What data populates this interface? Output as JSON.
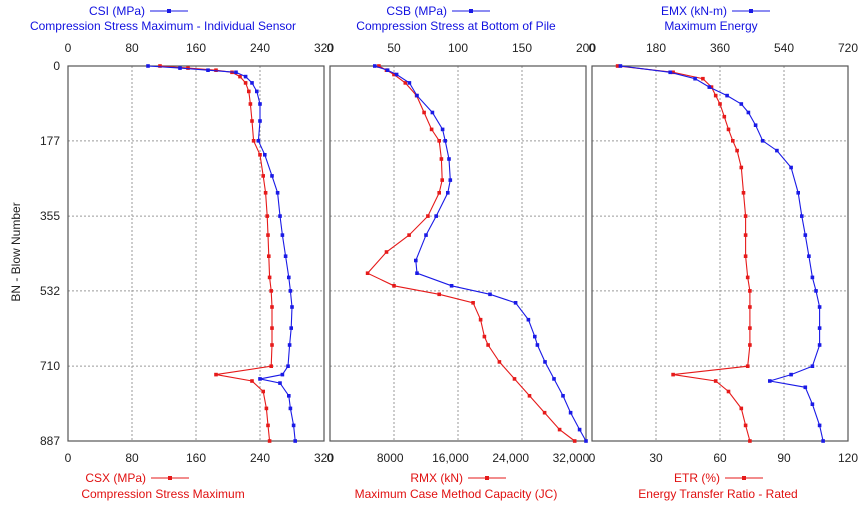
{
  "colors": {
    "blue": "#1a1ae6",
    "red": "#e61a1a",
    "grid": "#9a9a9a",
    "frame": "#555555"
  },
  "y_axis": {
    "label": "BN - Blow Number",
    "ticks": [
      0,
      177,
      355,
      532,
      710,
      887
    ],
    "range": [
      0,
      887
    ]
  },
  "chart_data": [
    {
      "type": "line",
      "top_series": {
        "name": "CSI (MPa)",
        "description": "Compression Stress Maximum - Individual Sensor",
        "color": "blue",
        "ticks": [
          0,
          80,
          160,
          240,
          320
        ],
        "range": [
          0,
          320
        ],
        "points": [
          [
            0,
            100
          ],
          [
            5,
            140
          ],
          [
            10,
            175
          ],
          [
            15,
            210
          ],
          [
            25,
            222
          ],
          [
            40,
            230
          ],
          [
            60,
            236
          ],
          [
            90,
            240
          ],
          [
            130,
            240
          ],
          [
            177,
            238
          ],
          [
            210,
            246
          ],
          [
            260,
            255
          ],
          [
            300,
            262
          ],
          [
            355,
            265
          ],
          [
            400,
            268
          ],
          [
            450,
            272
          ],
          [
            500,
            276
          ],
          [
            532,
            278
          ],
          [
            570,
            280
          ],
          [
            620,
            279
          ],
          [
            660,
            277
          ],
          [
            710,
            275
          ],
          [
            730,
            268
          ],
          [
            740,
            240
          ],
          [
            750,
            265
          ],
          [
            780,
            276
          ],
          [
            810,
            278
          ],
          [
            850,
            282
          ],
          [
            887,
            284
          ]
        ]
      },
      "bottom_series": {
        "name": "CSX (MPa)",
        "description": "Compression Stress Maximum",
        "color": "red",
        "ticks": [
          0,
          80,
          160,
          240,
          320
        ],
        "range": [
          0,
          320
        ],
        "points": [
          [
            0,
            115
          ],
          [
            5,
            150
          ],
          [
            10,
            185
          ],
          [
            15,
            205
          ],
          [
            25,
            215
          ],
          [
            40,
            222
          ],
          [
            60,
            226
          ],
          [
            90,
            228
          ],
          [
            130,
            230
          ],
          [
            177,
            232
          ],
          [
            210,
            240
          ],
          [
            260,
            244
          ],
          [
            300,
            247
          ],
          [
            355,
            249
          ],
          [
            400,
            250
          ],
          [
            450,
            251
          ],
          [
            500,
            252
          ],
          [
            532,
            254
          ],
          [
            570,
            255
          ],
          [
            620,
            255
          ],
          [
            660,
            255
          ],
          [
            710,
            254
          ],
          [
            730,
            185
          ],
          [
            745,
            230
          ],
          [
            770,
            244
          ],
          [
            810,
            248
          ],
          [
            850,
            250
          ],
          [
            887,
            252
          ]
        ]
      }
    },
    {
      "type": "line",
      "top_series": {
        "name": "CSB (MPa)",
        "description": "Compression Stress at Bottom of Pile",
        "color": "blue",
        "ticks": [
          0,
          50,
          100,
          150,
          200
        ],
        "range": [
          0,
          200
        ],
        "points": [
          [
            0,
            35
          ],
          [
            10,
            45
          ],
          [
            20,
            52
          ],
          [
            40,
            62
          ],
          [
            70,
            68
          ],
          [
            110,
            80
          ],
          [
            150,
            88
          ],
          [
            177,
            90
          ],
          [
            220,
            93
          ],
          [
            270,
            94
          ],
          [
            300,
            92
          ],
          [
            355,
            83
          ],
          [
            400,
            75
          ],
          [
            460,
            67
          ],
          [
            490,
            68
          ],
          [
            520,
            95
          ],
          [
            540,
            125
          ],
          [
            560,
            145
          ],
          [
            600,
            155
          ],
          [
            640,
            160
          ],
          [
            660,
            162
          ],
          [
            700,
            168
          ],
          [
            740,
            175
          ],
          [
            780,
            182
          ],
          [
            820,
            188
          ],
          [
            860,
            195
          ],
          [
            887,
            200
          ]
        ]
      },
      "bottom_series": {
        "name": "RMX (kN)",
        "description": "Maximum Case Method Capacity (JC)",
        "color": "red",
        "ticks": [
          0,
          8000,
          16000,
          24000,
          32000
        ],
        "range": [
          0,
          34000
        ],
        "points": [
          [
            0,
            6500
          ],
          [
            10,
            7500
          ],
          [
            20,
            8500
          ],
          [
            40,
            10000
          ],
          [
            70,
            11500
          ],
          [
            110,
            12500
          ],
          [
            150,
            13500
          ],
          [
            177,
            14500
          ],
          [
            220,
            14800
          ],
          [
            270,
            14900
          ],
          [
            300,
            14500
          ],
          [
            355,
            13000
          ],
          [
            400,
            10500
          ],
          [
            440,
            7500
          ],
          [
            490,
            5000
          ],
          [
            520,
            8500
          ],
          [
            540,
            14500
          ],
          [
            560,
            19000
          ],
          [
            600,
            20000
          ],
          [
            640,
            20500
          ],
          [
            660,
            21000
          ],
          [
            700,
            22500
          ],
          [
            740,
            24500
          ],
          [
            780,
            26500
          ],
          [
            820,
            28500
          ],
          [
            860,
            30500
          ],
          [
            887,
            32500
          ]
        ]
      }
    },
    {
      "type": "line",
      "top_series": {
        "name": "EMX (kN-m)",
        "description": "Maximum Energy",
        "color": "blue",
        "ticks": [
          0,
          180,
          360,
          540,
          720
        ],
        "range": [
          0,
          720
        ],
        "points": [
          [
            0,
            80
          ],
          [
            15,
            220
          ],
          [
            30,
            290
          ],
          [
            50,
            330
          ],
          [
            70,
            380
          ],
          [
            90,
            420
          ],
          [
            110,
            440
          ],
          [
            140,
            460
          ],
          [
            177,
            480
          ],
          [
            200,
            520
          ],
          [
            240,
            560
          ],
          [
            300,
            580
          ],
          [
            355,
            590
          ],
          [
            400,
            600
          ],
          [
            450,
            610
          ],
          [
            500,
            620
          ],
          [
            532,
            630
          ],
          [
            570,
            640
          ],
          [
            620,
            640
          ],
          [
            660,
            640
          ],
          [
            710,
            620
          ],
          [
            730,
            560
          ],
          [
            745,
            500
          ],
          [
            760,
            600
          ],
          [
            800,
            620
          ],
          [
            850,
            640
          ],
          [
            887,
            650
          ]
        ]
      },
      "bottom_series": {
        "name": "ETR (%)",
        "description": "Energy Transfer Ratio - Rated",
        "color": "red",
        "ticks": [
          0,
          30,
          60,
          90,
          120
        ],
        "range": [
          0,
          120
        ],
        "points": [
          [
            0,
            12
          ],
          [
            15,
            38
          ],
          [
            30,
            52
          ],
          [
            50,
            56
          ],
          [
            70,
            58
          ],
          [
            90,
            60
          ],
          [
            120,
            62
          ],
          [
            150,
            64
          ],
          [
            177,
            66
          ],
          [
            200,
            68
          ],
          [
            240,
            70
          ],
          [
            300,
            71
          ],
          [
            355,
            72
          ],
          [
            400,
            72
          ],
          [
            450,
            72
          ],
          [
            500,
            73
          ],
          [
            532,
            74
          ],
          [
            570,
            74
          ],
          [
            620,
            74
          ],
          [
            660,
            74
          ],
          [
            710,
            73
          ],
          [
            730,
            38
          ],
          [
            745,
            58
          ],
          [
            770,
            64
          ],
          [
            810,
            70
          ],
          [
            850,
            72
          ],
          [
            887,
            74
          ]
        ]
      }
    }
  ]
}
